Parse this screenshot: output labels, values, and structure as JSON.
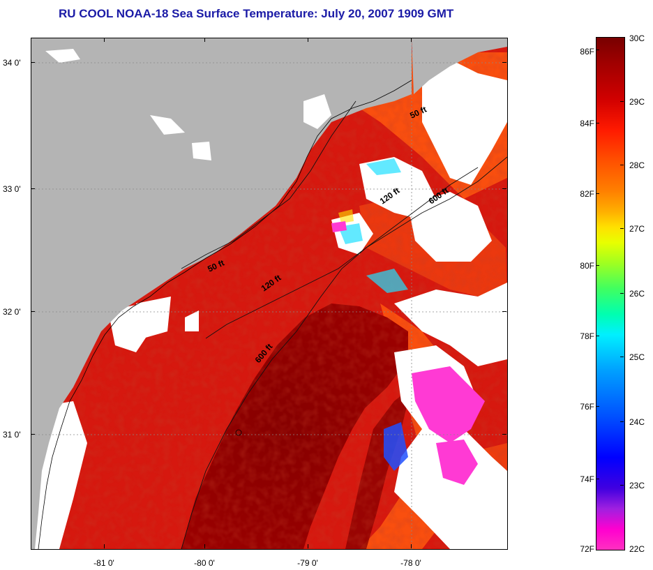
{
  "title": "RU COOL  NOAA-18  Sea Surface Temperature:  July 20, 2007 1909 GMT",
  "map": {
    "lat_labels": [
      "34 0'",
      "33 0'",
      "32 0'",
      "31 0'"
    ],
    "lon_labels": [
      "-81 0'",
      "-80 0'",
      "-79 0'",
      "-78 0'"
    ],
    "isobaths": [
      {
        "label": "50 ft"
      },
      {
        "label": "120 ft"
      },
      {
        "label": "600 ft"
      },
      {
        "label": "50 ft"
      },
      {
        "label": "120 ft"
      },
      {
        "label": "600 ft"
      }
    ],
    "colors": {
      "land": "#b4b4b4",
      "cloud": "#ffffff",
      "warmest": "#8b0000",
      "warm": "#dd1a10",
      "orange": "#ff6a14",
      "cool": "#ff3ad4"
    }
  },
  "colorbar": {
    "fahrenheit_labels": [
      "86F",
      "84F",
      "82F",
      "80F",
      "78F",
      "76F",
      "74F",
      "72F"
    ],
    "celsius_labels": [
      "30C",
      "29C",
      "28C",
      "27C",
      "26C",
      "25C",
      "24C",
      "23C",
      "22C"
    ],
    "range_c": [
      22,
      30
    ]
  }
}
